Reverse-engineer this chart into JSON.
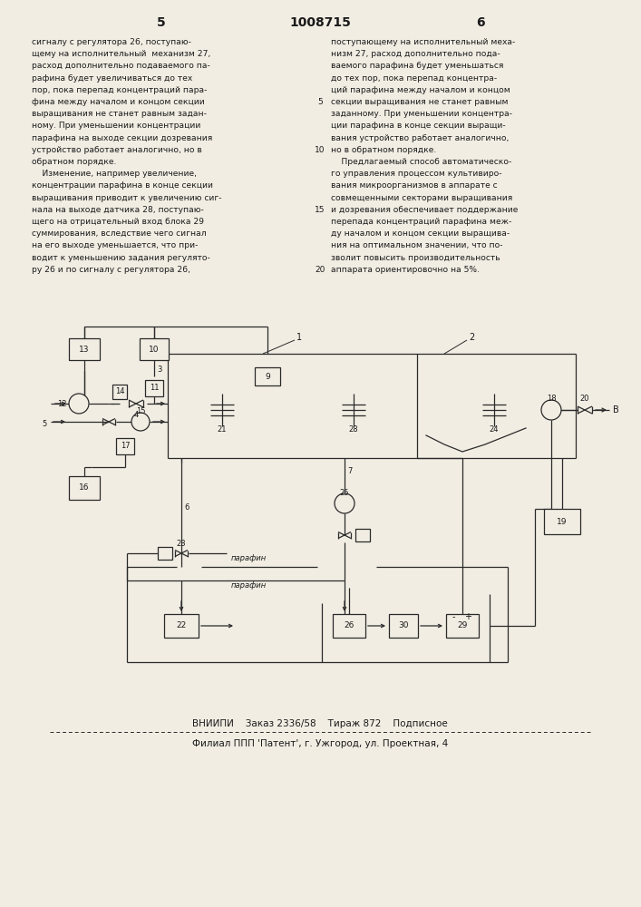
{
  "page_number_left": "5",
  "patent_number": "1008715",
  "page_number_right": "6",
  "left_column_text": [
    "сигналу с регулятора 26, поступаю-",
    "щему на исполнительный  механизм 27,",
    "расход дополнительно подаваемого па-",
    "рафина будет увеличиваться до тех",
    "пор, пока перепад концентраций пара-",
    "фина между началом и концом секции",
    "выращивания не станет равным задан-",
    "ному. При уменьшении концентрации",
    "парафина на выходе секции дозревания",
    "устройство работает аналогично, но в",
    "обратном порядке.",
    "    Изменение, например увеличение,",
    "концентрации парафина в конце секции",
    "выращивания приводит к увеличению сиг-",
    "нала на выходе датчика 28, поступаю-",
    "щего на отрицательный вход блока 29",
    "суммирования, вследствие чего сигнал",
    "на его выходе уменьшается, что при-",
    "водит к уменьшению задания регулято-",
    "ру 26 и по сигналу с регулятора 26,"
  ],
  "line_numbers": [
    "",
    "",
    "",
    "",
    "",
    "5",
    "",
    "",
    "",
    "10",
    "",
    "",
    "",
    "",
    "15",
    "",
    "",
    "",
    "",
    "20"
  ],
  "right_column_text": [
    "поступающему на исполнительный меха-",
    "низм 27, расход дополнительно пода-",
    "ваемого парафина будет уменьшаться",
    "до тех пор, пока перепад концентра-",
    "ций парафина между началом и концом",
    "секции выращивания не станет равным",
    "заданному. При уменьшении концентра-",
    "ции парафина в конце секции выращи-",
    "вания устройство работает аналогично,",
    "но в обратном порядке.",
    "    Предлагаемый способ автоматическо-",
    "го управления процессом культивиро-",
    "вания микроорганизмов в аппарате с",
    "совмещенными секторами выращивания",
    "и дозревания обеспечивает поддержание",
    "перепада концентраций парафина меж-",
    "ду началом и концом секции выращива-",
    "ния на оптимальном значении, что по-",
    "зволит повысить производительность",
    "аппарата ориентировочно на 5%."
  ],
  "footer_line1": "ВНИИПИ    Заказ 2336/58    Тираж 872    Подписное",
  "footer_line2": "Филиал ППП 'Патент', г. Ужгород, ул. Проектная, 4",
  "bg_color": "#f2ede3",
  "text_color": "#1a1a1a",
  "line_color": "#2a2a2a"
}
